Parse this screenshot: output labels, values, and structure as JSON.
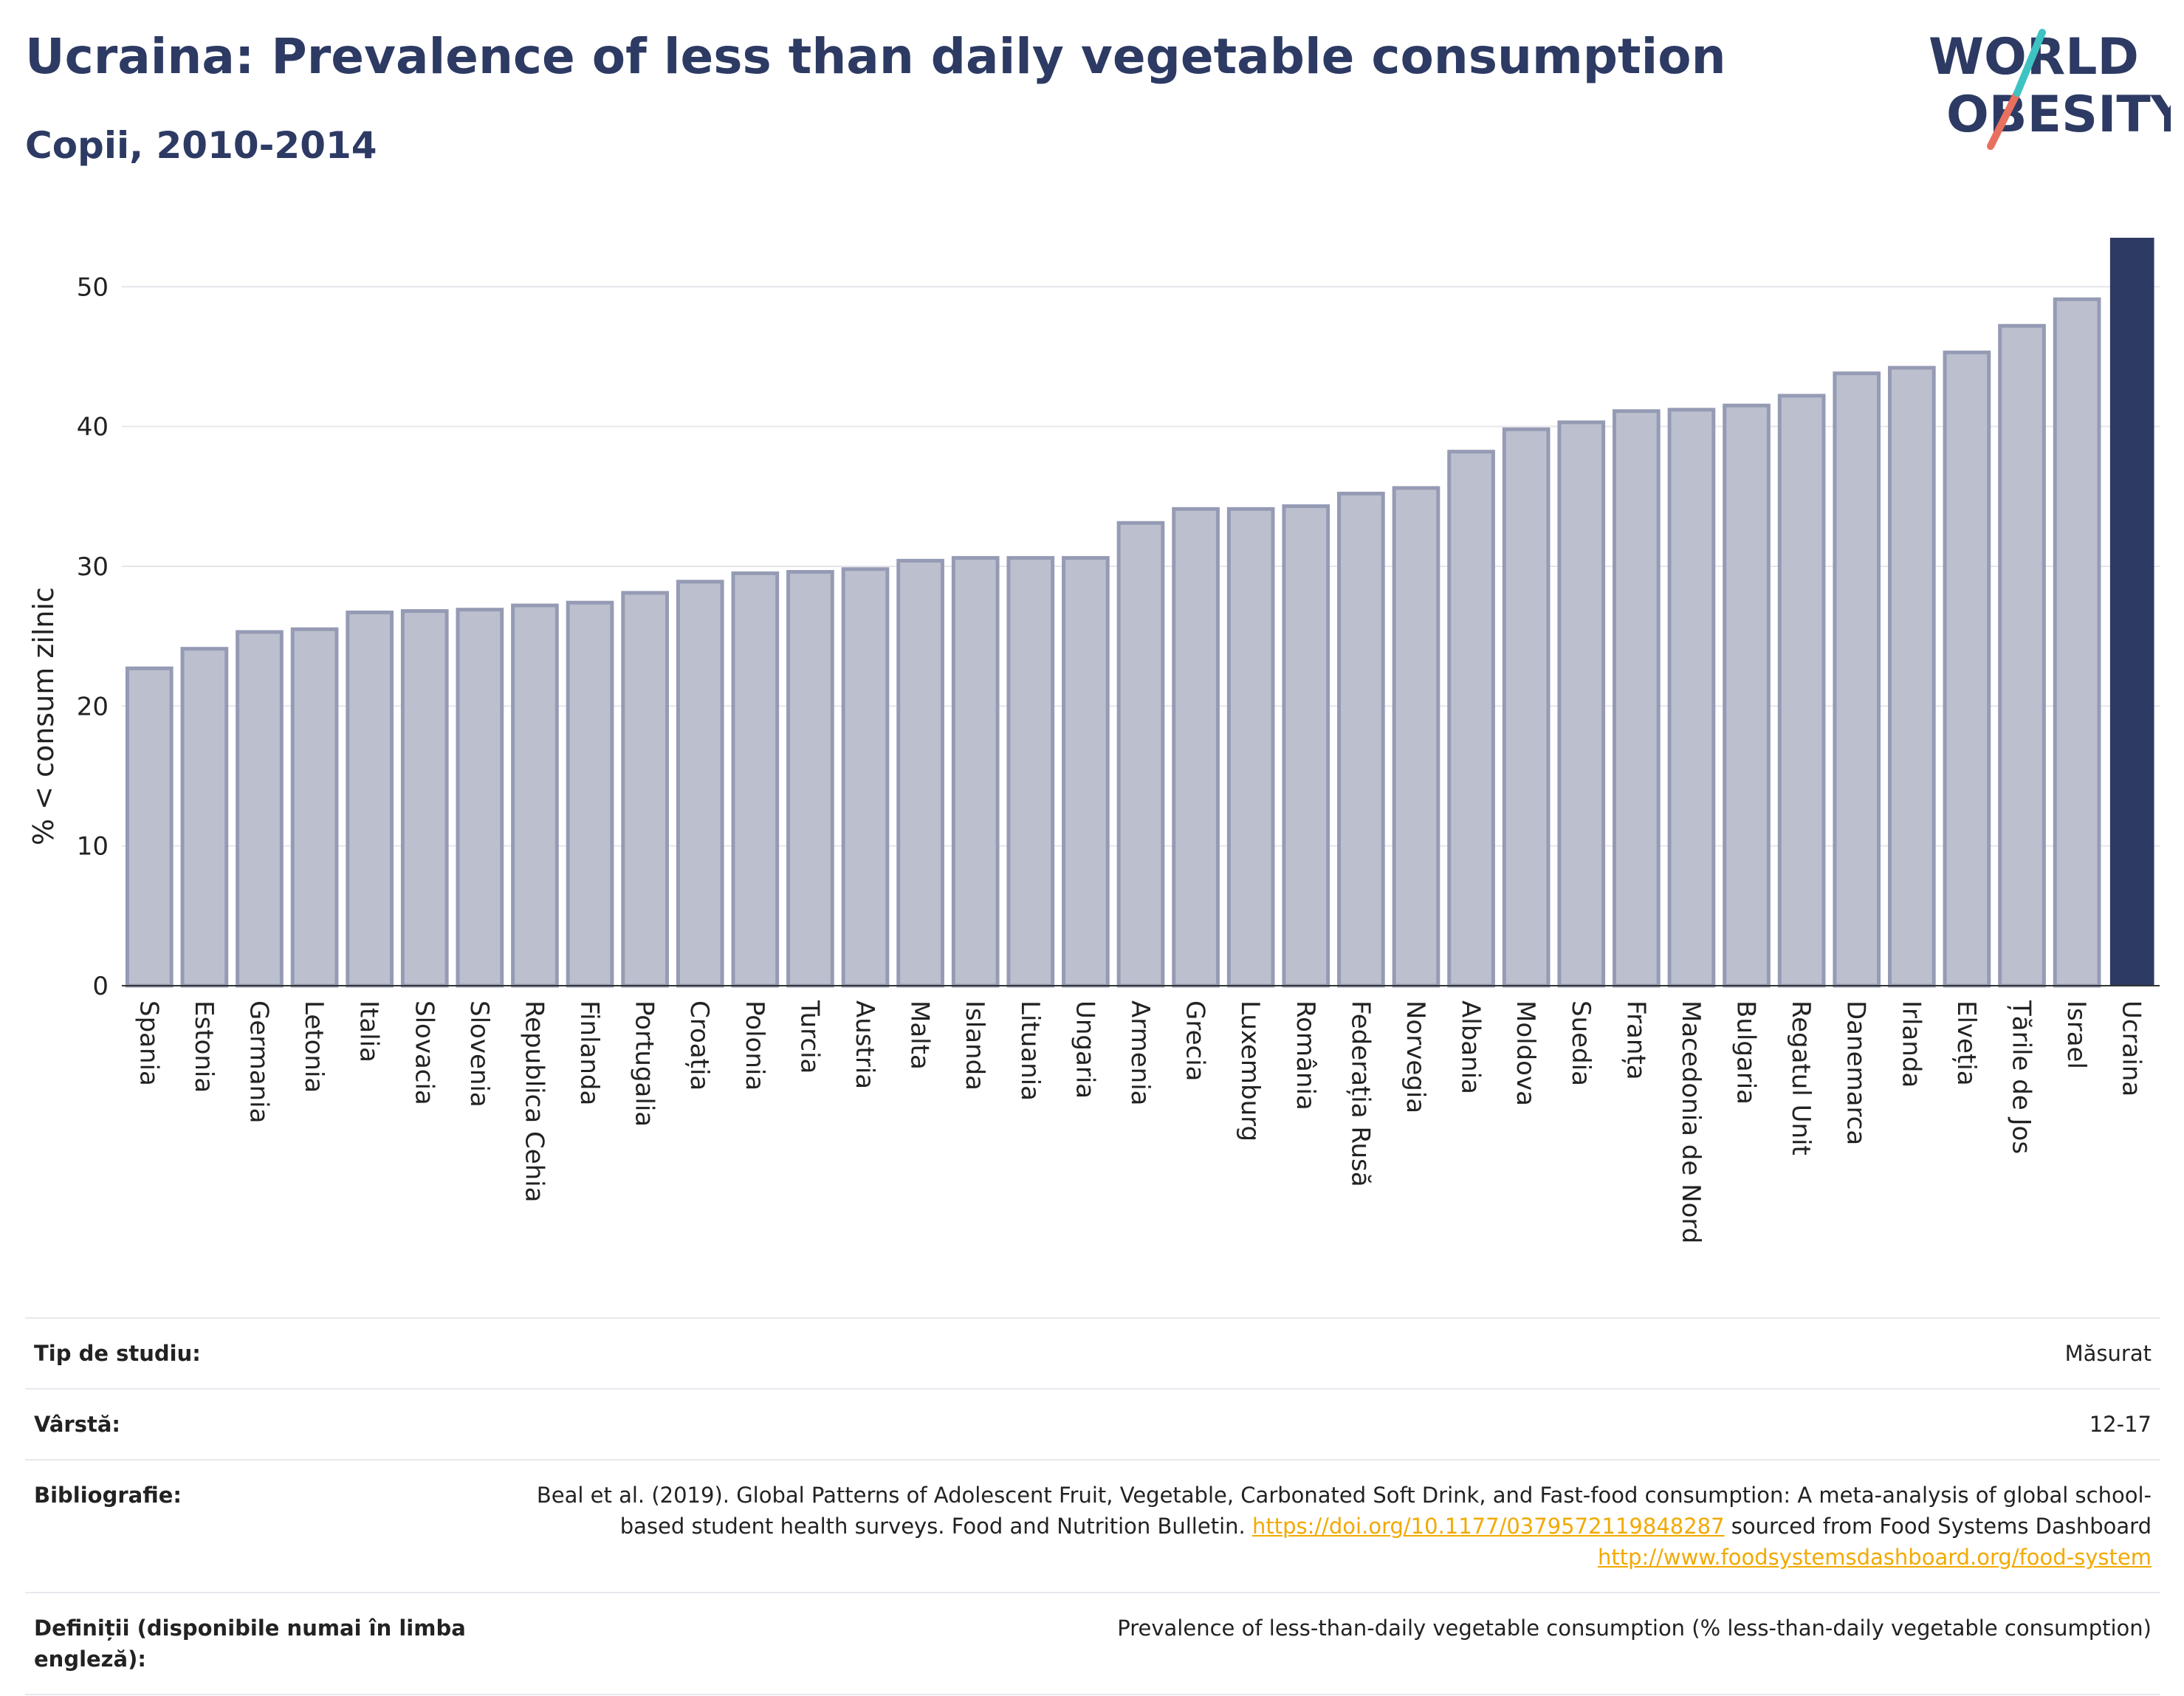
{
  "header": {
    "title": "Ucraina: Prevalence of less than daily vegetable consumption",
    "subtitle": "Copii, 2010-2014"
  },
  "logo": {
    "line1": "WORLD",
    "line2": "OBESITY"
  },
  "colors": {
    "bar": "#bcc0ce",
    "bar_stroke": "#959bb4",
    "highlight": "#2d3a63",
    "logo_slash_teal": "#3ec3c3",
    "logo_slash_coral": "#e8705f",
    "link": "#f2a900"
  },
  "chart_data": {
    "type": "bar",
    "ylabel": "% < consum zilnic",
    "ylim": [
      0,
      53.5
    ],
    "yticks": [
      0,
      10,
      20,
      30,
      40,
      50
    ],
    "grid": true,
    "highlight": "Ucraina",
    "categories": [
      "Spania",
      "Estonia",
      "Germania",
      "Letonia",
      "Italia",
      "Slovacia",
      "Slovenia",
      "Republica Cehia",
      "Finlanda",
      "Portugalia",
      "Croația",
      "Polonia",
      "Turcia",
      "Austria",
      "Malta",
      "Islanda",
      "Lituania",
      "Ungaria",
      "Armenia",
      "Grecia",
      "Luxemburg",
      "România",
      "Federația Rusă",
      "Norvegia",
      "Albania",
      "Moldova",
      "Suedia",
      "Franța",
      "Macedonia de Nord",
      "Bulgaria",
      "Regatul Unit",
      "Danemarca",
      "Irlanda",
      "Elveția",
      "Țările de Jos",
      "Israel",
      "Ucraina"
    ],
    "values": [
      22.7,
      24.1,
      25.3,
      25.5,
      26.7,
      26.8,
      26.9,
      27.2,
      27.4,
      28.1,
      28.9,
      29.5,
      29.6,
      29.8,
      30.4,
      30.6,
      30.6,
      30.6,
      33.1,
      34.1,
      34.1,
      34.3,
      35.2,
      35.6,
      38.2,
      39.8,
      40.3,
      41.1,
      41.2,
      41.5,
      42.2,
      43.8,
      44.2,
      45.3,
      47.2,
      49.1,
      53.5
    ]
  },
  "info": {
    "rows": [
      {
        "label": "Tip de studiu:",
        "value": "Măsurat"
      },
      {
        "label": "Vârstă:",
        "value": "12-17"
      },
      {
        "label": "Bibliografie:",
        "value_pre": "Beal et al. (2019). Global Patterns of Adolescent Fruit, Vegetable, Carbonated Soft Drink, and Fast-food consumption: A meta-analysis of global school-based student health surveys. Food and Nutrition Bulletin.",
        "link1": "https://doi.org/10.1177/0379572119848287",
        "value_mid": "sourced from Food Systems Dashboard",
        "link2": "http://www.foodsystemsdashboard.org/food-system"
      },
      {
        "label": "Definiții (disponibile numai în limba engleză):",
        "value": "Prevalence of less-than-daily vegetable consumption (% less-than-daily vegetable consumption)"
      }
    ]
  }
}
